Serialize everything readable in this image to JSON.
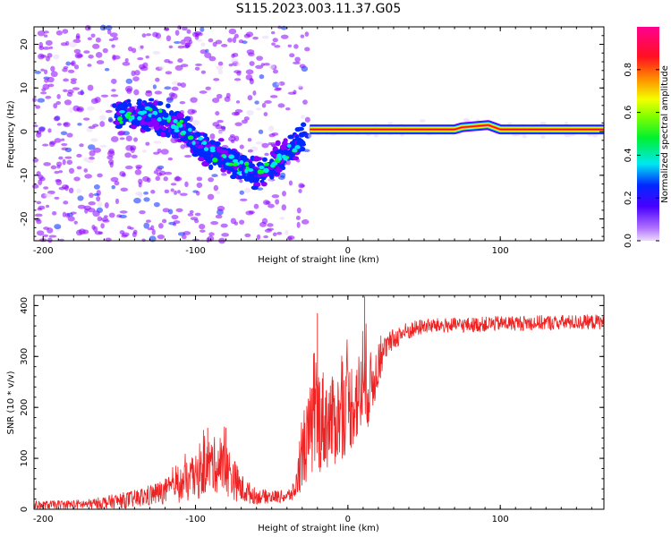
{
  "title": "S115.2023.003.11.37.G05",
  "chart_data": [
    {
      "type": "heatmap",
      "xlabel": "Height of straight line (km)",
      "ylabel": "Frequency (Hz)",
      "xlim": [
        -206,
        168
      ],
      "ylim": [
        -25,
        24
      ],
      "xticks": [
        -200,
        -100,
        0,
        100
      ],
      "yticks": [
        20,
        10,
        0,
        -10,
        -20
      ],
      "colorbar": {
        "label": "Normalized spectral amplitude",
        "range": [
          0,
          1
        ],
        "ticks": [
          0.0,
          0.2,
          0.4,
          0.6,
          0.8
        ],
        "colors": [
          "#e8d8f8",
          "#8a00ff",
          "#0028ff",
          "#00e8f0",
          "#00ff20",
          "#f0ff00",
          "#ff8800",
          "#ff0030",
          "#ff0090"
        ]
      },
      "features": {
        "scatter_region_x": [
          -206,
          -25
        ],
        "descending_track": [
          {
            "x": -150,
            "y": 4
          },
          {
            "x": -130,
            "y": 4
          },
          {
            "x": -110,
            "y": 1
          },
          {
            "x": -95,
            "y": -4
          },
          {
            "x": -80,
            "y": -6
          },
          {
            "x": -60,
            "y": -10
          },
          {
            "x": -45,
            "y": -6
          },
          {
            "x": -30,
            "y": -2
          }
        ],
        "steady_line": [
          {
            "x": -25,
            "y": 0.5
          },
          {
            "x": 70,
            "y": 0.5
          },
          {
            "x": 75,
            "y": 1
          },
          {
            "x": 92,
            "y": 1.5
          },
          {
            "x": 100,
            "y": 0.5
          },
          {
            "x": 168,
            "y": 0.5
          }
        ]
      }
    },
    {
      "type": "line",
      "xlabel": "Height of straight line (km)",
      "ylabel": "SNR (10 * v/v)",
      "xlim": [
        -206,
        168
      ],
      "ylim": [
        0,
        420
      ],
      "xticks": [
        -200,
        -100,
        0,
        100
      ],
      "yticks": [
        0,
        100,
        200,
        300,
        400
      ],
      "color": "#ee2222",
      "envelope": [
        {
          "x": -206,
          "mean": 8,
          "spread": 8
        },
        {
          "x": -170,
          "mean": 10,
          "spread": 10
        },
        {
          "x": -140,
          "mean": 20,
          "spread": 18
        },
        {
          "x": -120,
          "mean": 35,
          "spread": 25
        },
        {
          "x": -100,
          "mean": 60,
          "spread": 45
        },
        {
          "x": -90,
          "mean": 90,
          "spread": 55
        },
        {
          "x": -80,
          "mean": 80,
          "spread": 55
        },
        {
          "x": -70,
          "mean": 40,
          "spread": 30
        },
        {
          "x": -60,
          "mean": 25,
          "spread": 15
        },
        {
          "x": -40,
          "mean": 25,
          "spread": 12
        },
        {
          "x": -35,
          "mean": 35,
          "spread": 20
        },
        {
          "x": -30,
          "mean": 100,
          "spread": 60
        },
        {
          "x": -25,
          "mean": 150,
          "spread": 90
        },
        {
          "x": -20,
          "mean": 180,
          "spread": 110
        },
        {
          "x": -10,
          "mean": 170,
          "spread": 90
        },
        {
          "x": 0,
          "mean": 200,
          "spread": 90
        },
        {
          "x": 10,
          "mean": 230,
          "spread": 90
        },
        {
          "x": 15,
          "mean": 240,
          "spread": 70
        },
        {
          "x": 20,
          "mean": 280,
          "spread": 40
        },
        {
          "x": 25,
          "mean": 320,
          "spread": 25
        },
        {
          "x": 35,
          "mean": 345,
          "spread": 20
        },
        {
          "x": 50,
          "mean": 360,
          "spread": 15
        },
        {
          "x": 80,
          "mean": 362,
          "spread": 15
        },
        {
          "x": 100,
          "mean": 365,
          "spread": 15
        },
        {
          "x": 168,
          "mean": 368,
          "spread": 15
        }
      ],
      "peaks": [
        {
          "x": -92,
          "y": 160
        },
        {
          "x": -80,
          "y": 160
        },
        {
          "x": -20,
          "y": 385
        },
        {
          "x": 11,
          "y": 418
        }
      ]
    }
  ]
}
